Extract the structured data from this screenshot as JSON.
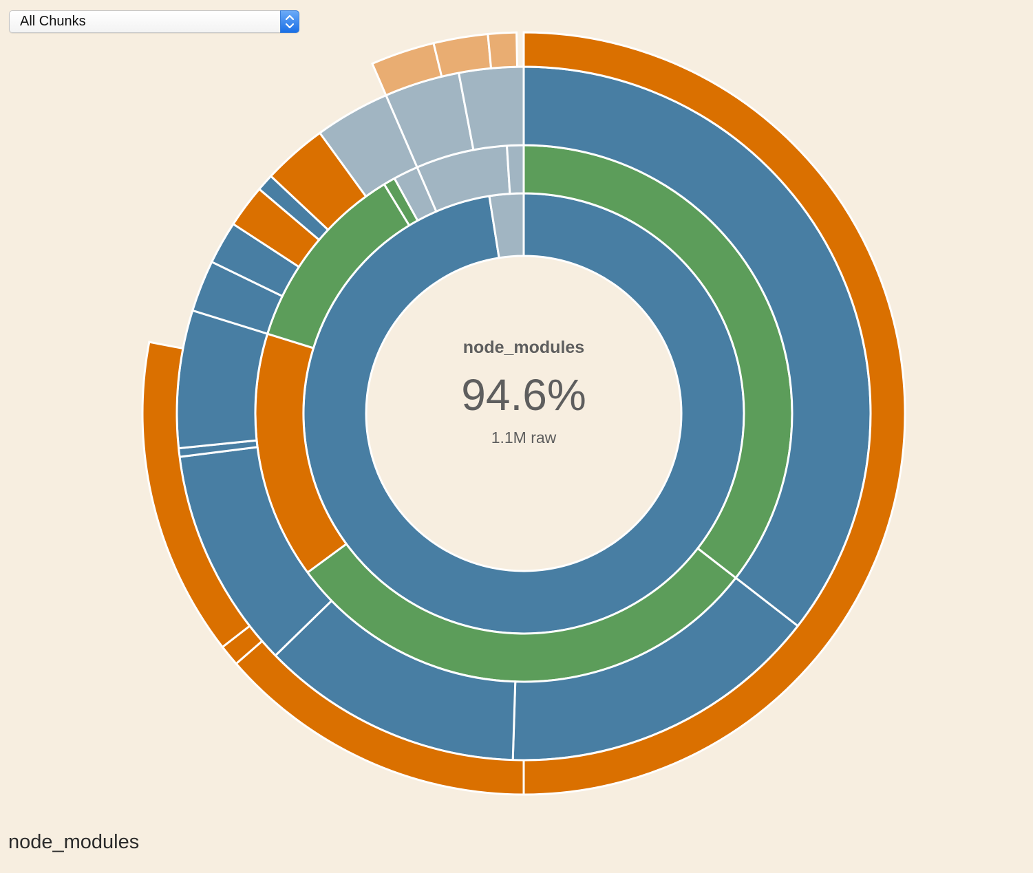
{
  "chunk_selector": {
    "selected": "All Chunks",
    "stepper_icon": "up-down-arrows"
  },
  "center": {
    "name": "node_modules",
    "percent": "94.6%",
    "size": "1.1M raw"
  },
  "breadcrumb": "node_modules",
  "colors": {
    "background": "#f7eee0",
    "folder_blue": "#487ea3",
    "folder_green": "#5c9d5a",
    "file_orange": "#da7000",
    "file_light_orange": "#e9ad72",
    "other_gray": "#a1b5c2",
    "separator": "#ffffff"
  },
  "chart_data": {
    "type": "sunburst",
    "total_percent_selected": 94.6,
    "total_size": "1.1M raw",
    "rings": [
      {
        "depth": 1,
        "segments": [
          {
            "start": 0.0,
            "end": 0.975,
            "color": "folder_blue"
          },
          {
            "start": 0.975,
            "end": 1.0,
            "color": "other_gray"
          }
        ]
      },
      {
        "depth": 2,
        "segments": [
          {
            "start": 0.0,
            "end": 0.355,
            "color": "folder_green"
          },
          {
            "start": 0.355,
            "end": 0.649,
            "color": "folder_green"
          },
          {
            "start": 0.649,
            "end": 0.798,
            "color": "file_orange"
          },
          {
            "start": 0.798,
            "end": 0.913,
            "color": "folder_green"
          },
          {
            "start": 0.913,
            "end": 0.92,
            "color": "folder_green"
          },
          {
            "start": 0.92,
            "end": 0.935,
            "color": "other_gray"
          },
          {
            "start": 0.935,
            "end": 0.99,
            "color": "other_gray"
          },
          {
            "start": 0.99,
            "end": 1.0,
            "color": "other_gray"
          }
        ]
      },
      {
        "depth": 3,
        "segments": [
          {
            "start": 0.0,
            "end": 0.355,
            "color": "folder_blue"
          },
          {
            "start": 0.355,
            "end": 0.505,
            "color": "folder_blue"
          },
          {
            "start": 0.505,
            "end": 0.627,
            "color": "folder_blue"
          },
          {
            "start": 0.627,
            "end": 0.73,
            "color": "folder_blue"
          },
          {
            "start": 0.73,
            "end": 0.734,
            "color": "folder_blue"
          },
          {
            "start": 0.734,
            "end": 0.798,
            "color": "folder_blue"
          },
          {
            "start": 0.798,
            "end": 0.822,
            "color": "folder_blue"
          },
          {
            "start": 0.822,
            "end": 0.842,
            "color": "folder_blue"
          },
          {
            "start": 0.842,
            "end": 0.862,
            "color": "file_orange"
          },
          {
            "start": 0.862,
            "end": 0.87,
            "color": "folder_blue"
          },
          {
            "start": 0.87,
            "end": 0.9,
            "color": "file_orange"
          },
          {
            "start": 0.9,
            "end": 0.935,
            "color": "other_gray"
          },
          {
            "start": 0.935,
            "end": 0.97,
            "color": "other_gray"
          },
          {
            "start": 0.97,
            "end": 1.0,
            "color": "other_gray"
          }
        ]
      },
      {
        "depth": 4,
        "segments": [
          {
            "start": 0.0,
            "end": 0.5,
            "color": "file_orange"
          },
          {
            "start": 0.5,
            "end": 0.636,
            "color": "file_orange"
          },
          {
            "start": 0.636,
            "end": 0.645,
            "color": "file_orange"
          },
          {
            "start": 0.645,
            "end": 0.78,
            "color": "file_orange"
          },
          {
            "start": 0.935,
            "end": 0.962,
            "color": "file_light_orange"
          },
          {
            "start": 0.962,
            "end": 0.985,
            "color": "file_light_orange"
          },
          {
            "start": 0.985,
            "end": 0.997,
            "color": "file_light_orange"
          }
        ]
      }
    ]
  }
}
